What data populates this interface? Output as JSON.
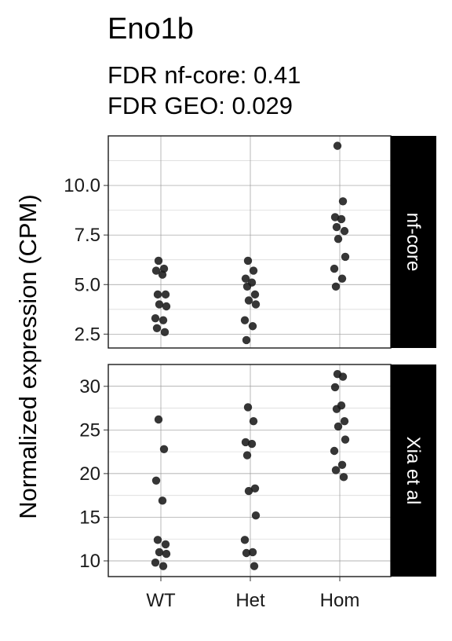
{
  "title": "Eno1b",
  "subtitle_lines": [
    "FDR nf-core: 0.41",
    "FDR GEO: 0.029"
  ],
  "chart_data": {
    "type": "scatter",
    "ylabel": "Normalized expression (CPM)",
    "categories": [
      "WT",
      "Het",
      "Hom"
    ],
    "point_color": "#1a1a1a",
    "grid": true,
    "facets": [
      {
        "strip": "nf-core",
        "ylim": [
          1.8,
          12.5
        ],
        "yticks": [
          2.5,
          5.0,
          7.5,
          10.0
        ],
        "ytick_labels": [
          "2.5",
          "5.0",
          "7.5",
          "10.0"
        ],
        "series": [
          {
            "category": "WT",
            "values": [
              6.2,
              5.8,
              5.7,
              5.5,
              4.5,
              4.5,
              4.0,
              3.9,
              3.3,
              3.2,
              2.8,
              2.6
            ]
          },
          {
            "category": "Het",
            "values": [
              6.2,
              5.7,
              5.3,
              5.1,
              4.9,
              4.5,
              4.2,
              4.0,
              3.2,
              2.9,
              2.2
            ]
          },
          {
            "category": "Hom",
            "values": [
              12.0,
              9.2,
              8.4,
              8.3,
              7.9,
              7.7,
              7.3,
              6.4,
              5.8,
              5.3,
              4.9
            ]
          }
        ]
      },
      {
        "strip": "Xia et al",
        "ylim": [
          8.2,
          32.5
        ],
        "yticks": [
          10,
          15,
          20,
          25,
          30
        ],
        "ytick_labels": [
          "10",
          "15",
          "20",
          "25",
          "30"
        ],
        "series": [
          {
            "category": "WT",
            "values": [
              26.2,
              22.8,
              19.2,
              16.9,
              12.4,
              11.9,
              11.0,
              10.8,
              9.8,
              9.4
            ]
          },
          {
            "category": "Het",
            "values": [
              27.6,
              26.0,
              23.6,
              23.4,
              22.1,
              18.3,
              18.0,
              15.2,
              12.4,
              11.0,
              10.9,
              9.4
            ]
          },
          {
            "category": "Hom",
            "values": [
              31.4,
              31.1,
              29.9,
              27.8,
              27.4,
              26.0,
              25.4,
              23.9,
              22.6,
              21.0,
              20.4,
              19.6
            ]
          }
        ]
      }
    ]
  }
}
